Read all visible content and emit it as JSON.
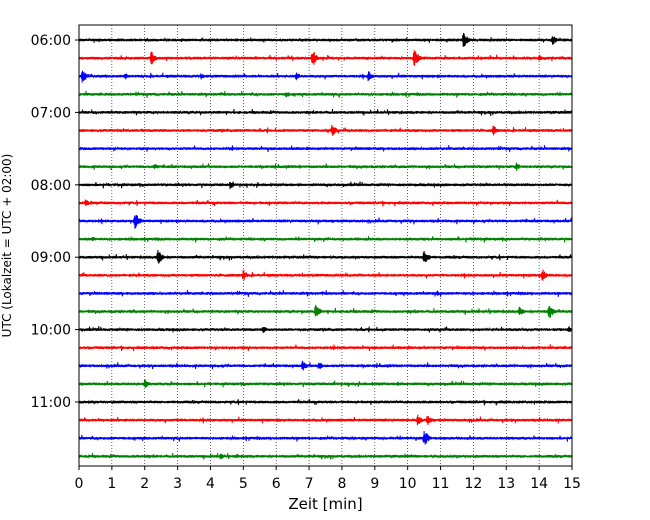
{
  "chart_data": {
    "type": "helicorder",
    "xlabel": "Zeit  [min]",
    "ylabel": "UTC (Lokalzeit = UTC + 02:00)",
    "x_ticks": [
      "0",
      "1",
      "2",
      "3",
      "4",
      "5",
      "6",
      "7",
      "8",
      "9",
      "10",
      "11",
      "12",
      "13",
      "14",
      "15"
    ],
    "xlim": [
      0,
      15
    ],
    "y_ticks": [
      {
        "label": "06:00",
        "trace_index": 0
      },
      {
        "label": "07:00",
        "trace_index": 4
      },
      {
        "label": "08:00",
        "trace_index": 8
      },
      {
        "label": "09:00",
        "trace_index": 12
      },
      {
        "label": "10:00",
        "trace_index": 16
      },
      {
        "label": "11:00",
        "trace_index": 20
      }
    ],
    "trace_interval_min": 15,
    "trace_count": 24,
    "trace_colors": [
      "#000000",
      "#ff0000",
      "#0000ff",
      "#008000"
    ],
    "grid": "vertical dotted at each minute",
    "events": [
      {
        "trace": 0,
        "minute": 11.7,
        "amp": 0.9
      },
      {
        "trace": 0,
        "minute": 14.4,
        "amp": 0.6
      },
      {
        "trace": 1,
        "minute": 2.2,
        "amp": 0.8
      },
      {
        "trace": 1,
        "minute": 7.1,
        "amp": 1.0
      },
      {
        "trace": 1,
        "minute": 10.2,
        "amp": 1.0
      },
      {
        "trace": 1,
        "minute": 14.0,
        "amp": 0.4
      },
      {
        "trace": 2,
        "minute": 0.1,
        "amp": 0.8
      },
      {
        "trace": 2,
        "minute": 1.4,
        "amp": 0.4
      },
      {
        "trace": 2,
        "minute": 3.7,
        "amp": 0.4
      },
      {
        "trace": 2,
        "minute": 6.6,
        "amp": 0.5
      },
      {
        "trace": 2,
        "minute": 8.8,
        "amp": 0.6
      },
      {
        "trace": 3,
        "minute": 6.3,
        "amp": 0.4
      },
      {
        "trace": 5,
        "minute": 7.7,
        "amp": 0.7
      },
      {
        "trace": 5,
        "minute": 12.6,
        "amp": 0.6
      },
      {
        "trace": 7,
        "minute": 2.3,
        "amp": 0.4
      },
      {
        "trace": 7,
        "minute": 13.3,
        "amp": 0.5
      },
      {
        "trace": 8,
        "minute": 4.6,
        "amp": 0.5
      },
      {
        "trace": 9,
        "minute": 0.2,
        "amp": 0.4
      },
      {
        "trace": 10,
        "minute": 1.7,
        "amp": 1.0
      },
      {
        "trace": 11,
        "minute": 0.4,
        "amp": 0.3
      },
      {
        "trace": 11,
        "minute": 12.0,
        "amp": 0.3
      },
      {
        "trace": 12,
        "minute": 2.4,
        "amp": 1.0
      },
      {
        "trace": 12,
        "minute": 10.5,
        "amp": 1.0
      },
      {
        "trace": 13,
        "minute": 5.0,
        "amp": 0.6
      },
      {
        "trace": 13,
        "minute": 14.1,
        "amp": 0.7
      },
      {
        "trace": 14,
        "minute": 10.9,
        "amp": 0.3
      },
      {
        "trace": 15,
        "minute": 7.2,
        "amp": 0.8
      },
      {
        "trace": 15,
        "minute": 13.4,
        "amp": 0.6
      },
      {
        "trace": 15,
        "minute": 14.3,
        "amp": 0.9
      },
      {
        "trace": 16,
        "minute": 5.6,
        "amp": 0.4
      },
      {
        "trace": 16,
        "minute": 14.9,
        "amp": 0.4
      },
      {
        "trace": 18,
        "minute": 6.8,
        "amp": 0.6
      },
      {
        "trace": 18,
        "minute": 7.3,
        "amp": 0.5
      },
      {
        "trace": 19,
        "minute": 2.0,
        "amp": 0.5
      },
      {
        "trace": 19,
        "minute": 9.7,
        "amp": 0.3
      },
      {
        "trace": 21,
        "minute": 10.3,
        "amp": 0.6
      },
      {
        "trace": 21,
        "minute": 10.6,
        "amp": 0.6
      },
      {
        "trace": 22,
        "minute": 10.5,
        "amp": 1.0
      },
      {
        "trace": 23,
        "minute": 4.3,
        "amp": 0.4
      },
      {
        "trace": 23,
        "minute": 4.8,
        "amp": 0.3
      }
    ]
  }
}
